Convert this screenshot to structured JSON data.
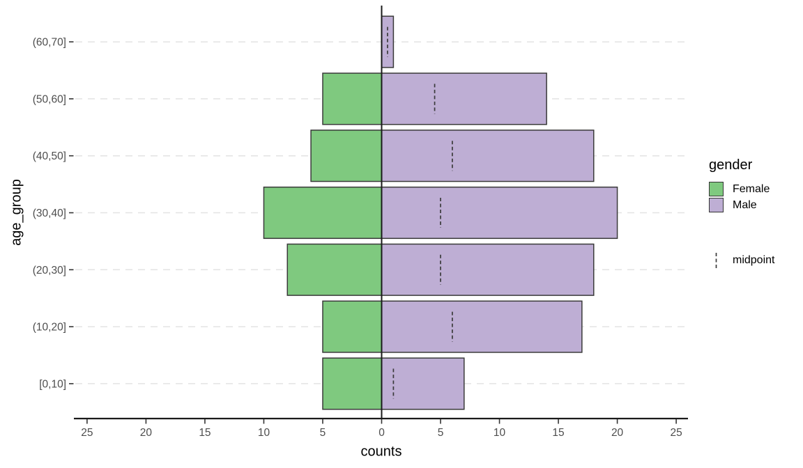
{
  "chart_data": {
    "type": "bar",
    "variant": "population-pyramid",
    "title": "",
    "xlabel": "counts",
    "ylabel": "age_group",
    "categories": [
      "(60,70]",
      "(50,60]",
      "(40,50]",
      "(30,40]",
      "(20,30]",
      "(10,20]",
      "[0,10]"
    ],
    "series": [
      {
        "name": "Female",
        "side": "left",
        "color": "#7fc97f",
        "values": [
          0,
          5,
          6,
          10,
          8,
          5,
          5
        ]
      },
      {
        "name": "Male",
        "side": "right",
        "color": "#beaed4",
        "values": [
          1,
          14,
          18,
          20,
          18,
          17,
          7
        ]
      }
    ],
    "midpoints": {
      "label": "midpoint",
      "values": [
        0.5,
        4.5,
        6,
        5,
        5,
        6,
        1
      ]
    },
    "x_tick_values": [
      -25,
      -20,
      -15,
      -10,
      -5,
      0,
      5,
      10,
      15,
      20,
      25
    ],
    "x_tick_labels": [
      "25",
      "20",
      "15",
      "10",
      "5",
      "0",
      "5",
      "10",
      "15",
      "20",
      "25"
    ],
    "xlim": [
      -26,
      26
    ],
    "zero_line": 0,
    "grid": "horizontal-dashed",
    "legend": {
      "title": "gender",
      "position": "right"
    }
  },
  "colors": {
    "female": "#7fc97f",
    "male": "#beaed4",
    "bar_border": "#3a3a3a",
    "grid_line": "#e3e3e3",
    "axis_line": "#1a1a1a",
    "tick_mark": "#333333",
    "tick_text": "#4d4d4d",
    "title_text": "#000000",
    "midpoint_line": "#3a3a3a",
    "background": "#ffffff"
  }
}
